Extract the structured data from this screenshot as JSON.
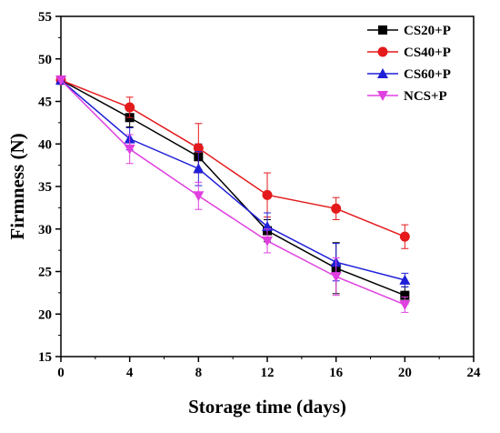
{
  "chart_data": {
    "type": "line",
    "xlabel": "Storage time (days)",
    "ylabel": "Firmness (N)",
    "xlim": [
      0,
      24
    ],
    "ylim": [
      15,
      55
    ],
    "xticks": [
      0,
      4,
      8,
      12,
      16,
      20,
      24
    ],
    "yticks": [
      15,
      20,
      25,
      30,
      35,
      40,
      45,
      50,
      55
    ],
    "x": [
      0,
      4,
      8,
      12,
      16,
      20
    ],
    "grid": false,
    "legend_position": "top-right",
    "series": [
      {
        "name": "CS20+P",
        "color": "#000000",
        "marker": "square",
        "values": [
          47.5,
          43.1,
          38.5,
          29.8,
          25.4,
          22.2
        ],
        "errors": [
          0,
          1.1,
          1.5,
          1.3,
          3.0,
          1.0
        ]
      },
      {
        "name": "CS40+P",
        "color": "#e41a1c",
        "marker": "circle",
        "values": [
          47.5,
          44.3,
          39.5,
          34.0,
          32.4,
          29.1
        ],
        "errors": [
          0,
          1.2,
          2.9,
          2.6,
          1.3,
          1.4
        ]
      },
      {
        "name": "CS60+P",
        "color": "#1f1fd8",
        "marker": "triangle-up",
        "values": [
          47.5,
          40.6,
          37.1,
          30.3,
          26.1,
          24.0
        ],
        "errors": [
          0,
          1.3,
          2.0,
          1.6,
          2.2,
          0.8
        ]
      },
      {
        "name": "NCS+P",
        "color": "#e040e0",
        "marker": "triangle-down",
        "values": [
          47.5,
          39.4,
          33.9,
          28.6,
          24.4,
          21.1
        ],
        "errors": [
          0,
          1.7,
          1.6,
          1.4,
          2.2,
          0.9
        ]
      }
    ]
  }
}
